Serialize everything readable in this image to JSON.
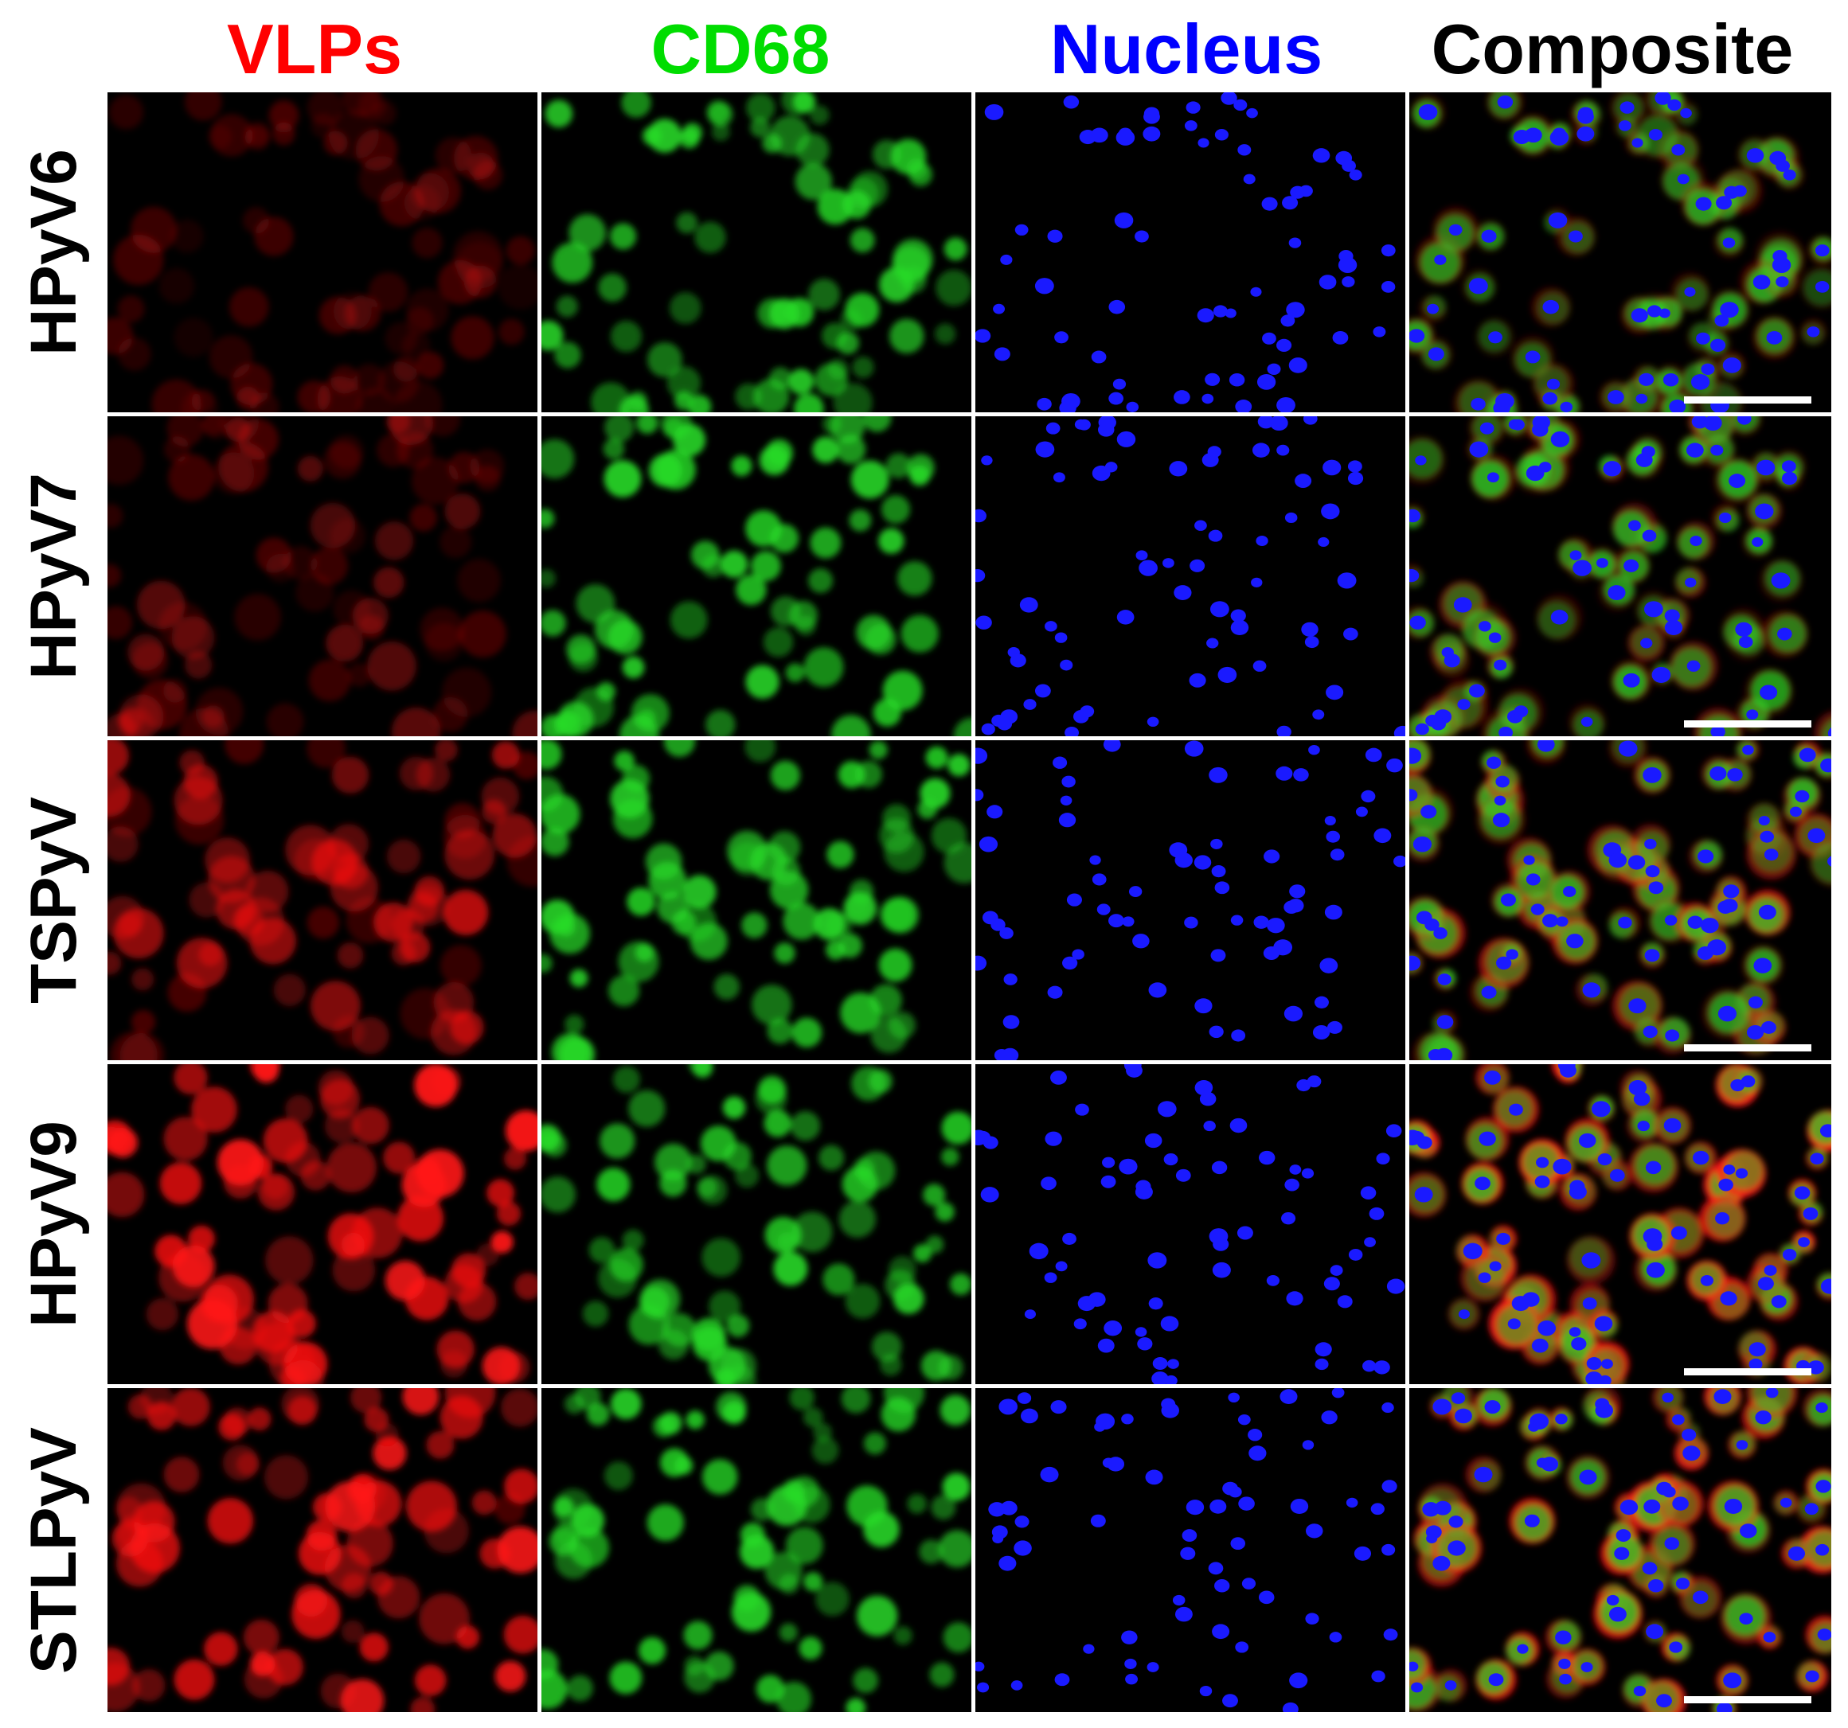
{
  "figure": {
    "column_headers": [
      {
        "label": "VLPs",
        "color": "#ff0000",
        "channel": "red"
      },
      {
        "label": "CD68",
        "color": "#00dd00",
        "channel": "green"
      },
      {
        "label": "Nucleus",
        "color": "#0000ff",
        "channel": "blue"
      },
      {
        "label": "Composite",
        "color": "#000000",
        "channel": "composite"
      }
    ],
    "rows": [
      {
        "label": "HPyV6",
        "vlp_intensity": 0.25
      },
      {
        "label": "HPyV7",
        "vlp_intensity": 0.35
      },
      {
        "label": "TSPyV",
        "vlp_intensity": 0.6
      },
      {
        "label": "HPyV9",
        "vlp_intensity": 0.95
      },
      {
        "label": "STLPyV",
        "vlp_intensity": 0.9
      }
    ],
    "scale_bar_shown": true
  }
}
